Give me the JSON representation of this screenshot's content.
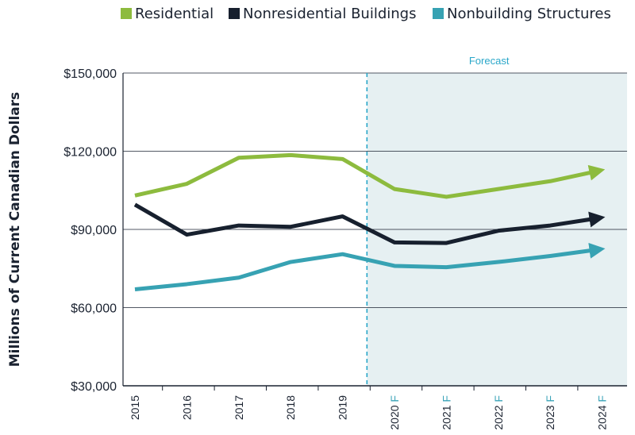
{
  "chart_data": {
    "type": "line",
    "title": "",
    "xlabel": "",
    "ylabel": "Millions of Current Canadian Dollars",
    "ylim": [
      30000,
      150000
    ],
    "yticks": [
      "$150,000",
      "$120,000",
      "$90,000",
      "$60,000",
      "$30,000"
    ],
    "ytick_values": [
      150000,
      120000,
      90000,
      60000,
      30000
    ],
    "categories": [
      "2015",
      "2016",
      "2017",
      "2018",
      "2019",
      "2020",
      "2021",
      "2022",
      "2023",
      "2024"
    ],
    "forecast_suffix": "F",
    "forecast_start_index": 5,
    "forecast_label": "Forecast",
    "grid": "horizontal",
    "legend_position": "top",
    "series": [
      {
        "name": "Residential",
        "color": "#8dbb3e",
        "values": [
          103000,
          107500,
          117500,
          118500,
          117000,
          105500,
          102500,
          105500,
          108500,
          112000
        ]
      },
      {
        "name": "Nonresidential Buildings",
        "color": "#17202e",
        "values": [
          99500,
          88000,
          91500,
          91000,
          95000,
          85000,
          84800,
          89500,
          91500,
          94000
        ]
      },
      {
        "name": "Nonbuilding Structures",
        "color": "#37a2b3",
        "values": [
          67000,
          69000,
          71500,
          77500,
          80500,
          76000,
          75500,
          77500,
          79800,
          82000
        ]
      }
    ],
    "colors": {
      "forecast_shade": "#e6f0f2",
      "forecast_line": "#2aa7c9",
      "grid": "#1a2230"
    }
  }
}
